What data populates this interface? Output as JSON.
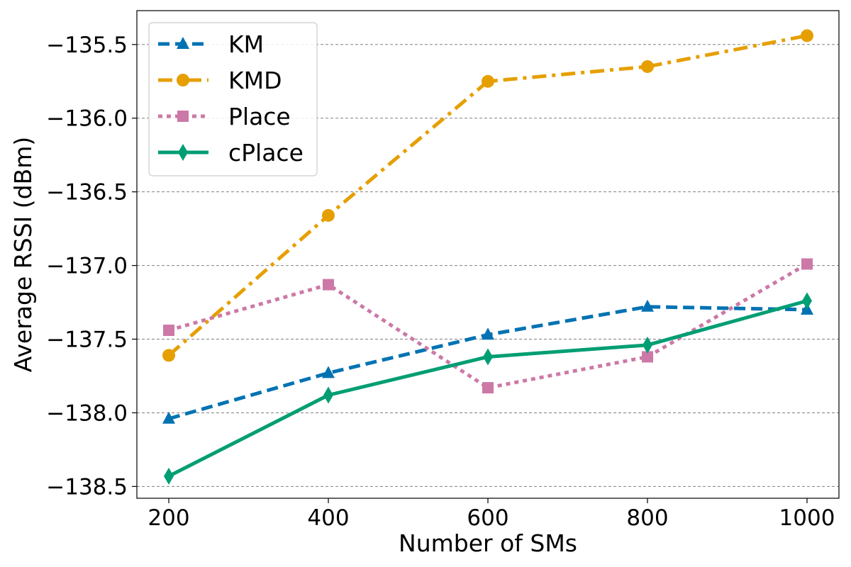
{
  "chart_data": {
    "type": "line",
    "xlabel": "Number of SMs",
    "ylabel": "Average RSSI (dBm)",
    "x": [
      200,
      400,
      600,
      800,
      1000
    ],
    "xlim": [
      160,
      1040
    ],
    "ylim": [
      -138.58,
      -135.27
    ],
    "xticks": [
      200,
      400,
      600,
      800,
      1000
    ],
    "xtick_labels": [
      "200",
      "400",
      "600",
      "800",
      "1000"
    ],
    "yticks": [
      -138.5,
      -138.0,
      -137.5,
      -137.0,
      -136.5,
      -136.0,
      -135.5
    ],
    "ytick_labels": [
      "−138.5",
      "−138.0",
      "−137.5",
      "−137.0",
      "−136.5",
      "−136.0",
      "−135.5"
    ],
    "grid": "horizontal dashed",
    "legend_position": "top-left",
    "series": [
      {
        "name": "KM",
        "values": [
          -138.04,
          -137.73,
          -137.47,
          -137.28,
          -137.3
        ],
        "color": "#0072B2",
        "dash": "dashed",
        "marker": "triangle"
      },
      {
        "name": "KMD",
        "values": [
          -137.61,
          -136.66,
          -135.75,
          -135.65,
          -135.44
        ],
        "color": "#E69F00",
        "dash": "dash-dot",
        "marker": "circle"
      },
      {
        "name": "Place",
        "values": [
          -137.44,
          -137.13,
          -137.83,
          -137.62,
          -136.99
        ],
        "color": "#CC79A7",
        "dash": "dotted",
        "marker": "square"
      },
      {
        "name": "cPlace",
        "values": [
          -138.43,
          -137.88,
          -137.62,
          -137.54,
          -137.24
        ],
        "color": "#009E73",
        "dash": "solid",
        "marker": "diamond"
      }
    ]
  }
}
